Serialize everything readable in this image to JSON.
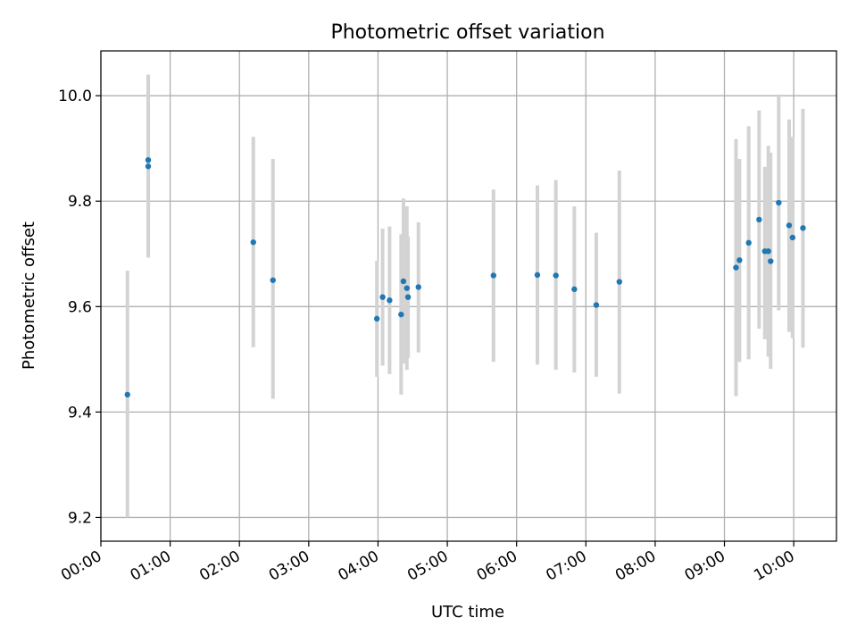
{
  "chart_data": {
    "type": "scatter",
    "title": "Photometric offset variation",
    "xlabel": "UTC time",
    "ylabel": "Photometric offset",
    "x_unit": "hours",
    "xlim": [
      "00:00",
      "10:37"
    ],
    "ylim": [
      9.155,
      10.085
    ],
    "x_ticks": [
      "00:00",
      "01:00",
      "02:00",
      "03:00",
      "04:00",
      "05:00",
      "06:00",
      "07:00",
      "08:00",
      "09:00",
      "10:00"
    ],
    "y_ticks": [
      "9.2",
      "9.4",
      "9.6",
      "9.8",
      "10.0"
    ],
    "grid": true,
    "colors": {
      "points": "#1f77b4",
      "error_bars": "#d3d3d3"
    },
    "points": [
      {
        "x": "00:23",
        "y": 9.433,
        "y_low": 9.2,
        "y_high": 9.668
      },
      {
        "x": "00:41",
        "y": 9.878,
        "y_low": 9.693,
        "y_high": 10.04
      },
      {
        "x": "00:41",
        "y": 9.866,
        "y_low": 9.693,
        "y_high": 10.04
      },
      {
        "x": "02:12",
        "y": 9.722,
        "y_low": 9.523,
        "y_high": 9.922
      },
      {
        "x": "02:29",
        "y": 9.65,
        "y_low": 9.425,
        "y_high": 9.88
      },
      {
        "x": "03:59",
        "y": 9.577,
        "y_low": 9.467,
        "y_high": 9.687
      },
      {
        "x": "04:04",
        "y": 9.618,
        "y_low": 9.488,
        "y_high": 9.748
      },
      {
        "x": "04:10",
        "y": 9.612,
        "y_low": 9.472,
        "y_high": 9.752
      },
      {
        "x": "04:20",
        "y": 9.585,
        "y_low": 9.433,
        "y_high": 9.737
      },
      {
        "x": "04:22",
        "y": 9.648,
        "y_low": 9.492,
        "y_high": 9.805
      },
      {
        "x": "04:25",
        "y": 9.635,
        "y_low": 9.48,
        "y_high": 9.79
      },
      {
        "x": "04:26",
        "y": 9.618,
        "y_low": 9.503,
        "y_high": 9.733
      },
      {
        "x": "04:35",
        "y": 9.637,
        "y_low": 9.513,
        "y_high": 9.76
      },
      {
        "x": "05:40",
        "y": 9.659,
        "y_low": 9.495,
        "y_high": 9.822
      },
      {
        "x": "06:18",
        "y": 9.66,
        "y_low": 9.49,
        "y_high": 9.83
      },
      {
        "x": "06:34",
        "y": 9.659,
        "y_low": 9.48,
        "y_high": 9.84
      },
      {
        "x": "06:50",
        "y": 9.633,
        "y_low": 9.475,
        "y_high": 9.79
      },
      {
        "x": "07:09",
        "y": 9.603,
        "y_low": 9.467,
        "y_high": 9.74
      },
      {
        "x": "07:29",
        "y": 9.647,
        "y_low": 9.435,
        "y_high": 9.858
      },
      {
        "x": "09:10",
        "y": 9.674,
        "y_low": 9.43,
        "y_high": 9.918
      },
      {
        "x": "09:13",
        "y": 9.688,
        "y_low": 9.495,
        "y_high": 9.88
      },
      {
        "x": "09:21",
        "y": 9.721,
        "y_low": 9.5,
        "y_high": 9.942
      },
      {
        "x": "09:30",
        "y": 9.765,
        "y_low": 9.558,
        "y_high": 9.972
      },
      {
        "x": "09:35",
        "y": 9.705,
        "y_low": 9.538,
        "y_high": 9.865
      },
      {
        "x": "09:38",
        "y": 9.705,
        "y_low": 9.505,
        "y_high": 9.905
      },
      {
        "x": "09:40",
        "y": 9.686,
        "y_low": 9.482,
        "y_high": 9.892
      },
      {
        "x": "09:47",
        "y": 9.797,
        "y_low": 9.593,
        "y_high": 10.002
      },
      {
        "x": "09:56",
        "y": 9.754,
        "y_low": 9.552,
        "y_high": 9.955
      },
      {
        "x": "09:59",
        "y": 9.731,
        "y_low": 9.54,
        "y_high": 9.922
      },
      {
        "x": "10:08",
        "y": 9.749,
        "y_low": 9.522,
        "y_high": 9.975
      }
    ]
  }
}
